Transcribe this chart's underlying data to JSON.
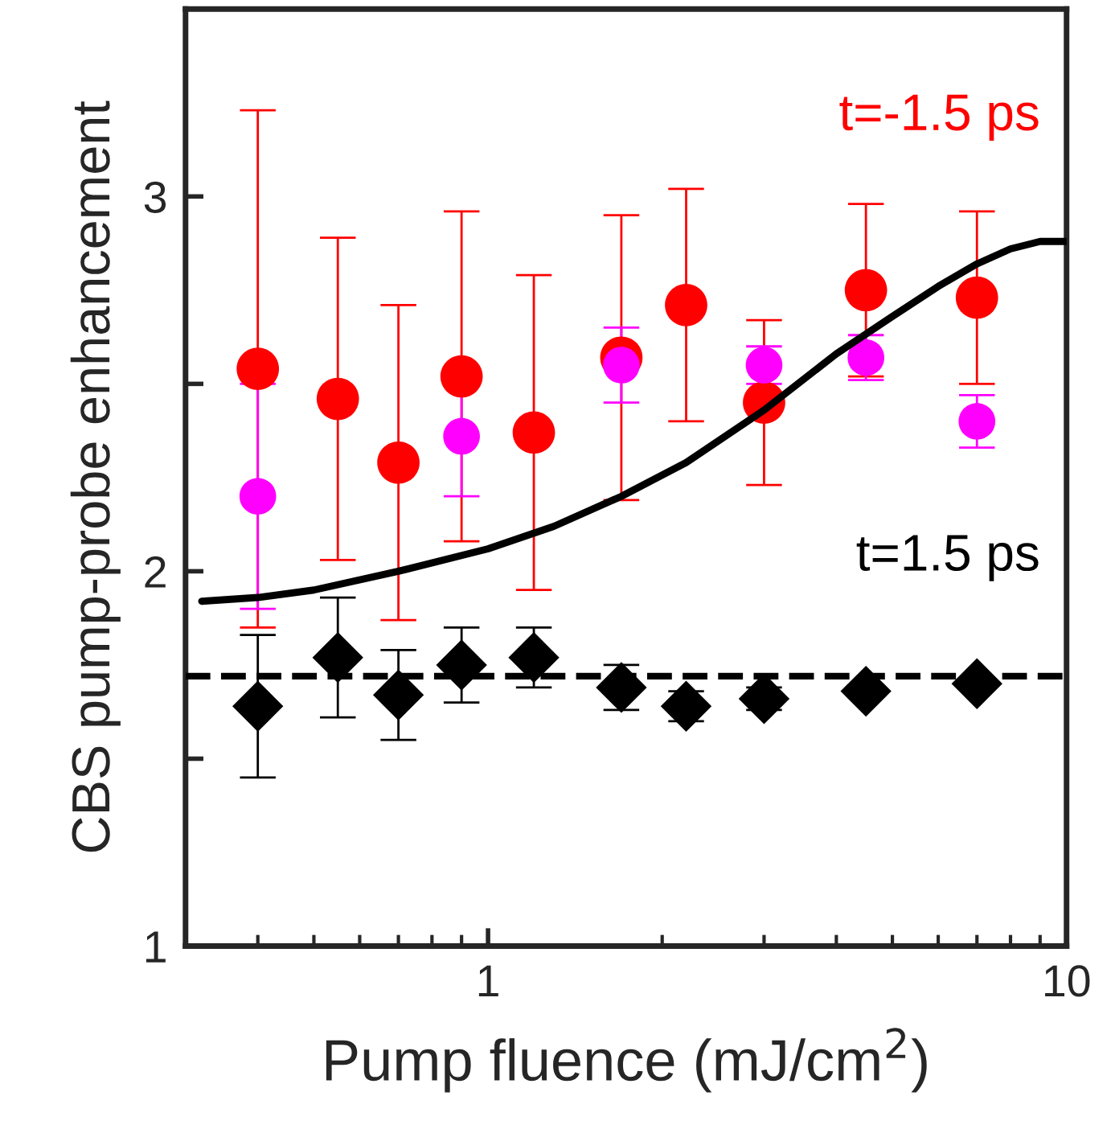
{
  "chart_data": {
    "type": "scatter",
    "xlabel": "Pump fluence (mJ/cm$^{2}$)",
    "ylabel": "CBS pump-probe enhancement",
    "x": [
      0.4,
      0.55,
      0.7,
      0.9,
      1.2,
      1.7,
      2.2,
      3.0,
      4.5,
      7.0
    ],
    "log": "x",
    "xlim": [
      0.3,
      10
    ],
    "xticks": [
      1,
      10
    ],
    "ylim": [
      1,
      3.5
    ],
    "yticks": [
      1,
      {
        "value": 1.5,
        "label": null
      },
      2,
      {
        "value": 2.5,
        "label": null
      },
      3
    ],
    "grid": false,
    "legend": false,
    "series": [
      {
        "name": "t=-1.5 ps",
        "color": "#ff0000",
        "marker": "circle",
        "values": [
          2.54,
          2.46,
          2.29,
          2.52,
          2.37,
          2.57,
          2.71,
          2.45,
          2.75,
          2.73
        ],
        "errors": [
          0.69,
          0.43,
          0.42,
          0.44,
          0.42,
          0.38,
          0.31,
          0.22,
          0.23,
          0.23
        ]
      },
      {
        "color": "#ff00ff",
        "marker": "circle",
        "values": [
          2.2,
          null,
          null,
          2.36,
          null,
          2.55,
          null,
          2.55,
          2.57,
          2.4
        ],
        "errors": [
          0.3,
          null,
          null,
          0.16,
          null,
          0.1,
          null,
          0.05,
          0.06,
          0.07
        ]
      },
      {
        "name": "t=1.5 ps",
        "color": "#000000",
        "marker": "diamond",
        "values": [
          1.64,
          1.77,
          1.67,
          1.75,
          1.77,
          1.69,
          1.64,
          1.66,
          1.68,
          1.7
        ],
        "errors": [
          0.19,
          0.16,
          0.12,
          0.1,
          0.08,
          0.06,
          0.04,
          0.03,
          null,
          null
        ]
      },
      {
        "type": "line",
        "color": "#000000",
        "line_style": "solid",
        "x": [
          0.32,
          0.4,
          0.5,
          0.7,
          1.0,
          1.3,
          1.7,
          2.2,
          3.0,
          4.0,
          5.0,
          6.0,
          7.0,
          8.0,
          9.0,
          10
        ],
        "values": [
          1.92,
          1.93,
          1.95,
          2.0,
          2.06,
          2.12,
          2.2,
          2.29,
          2.43,
          2.58,
          2.68,
          2.76,
          2.82,
          2.86,
          2.88,
          2.88
        ]
      }
    ],
    "ref_lines": [
      {
        "axis": "y",
        "value": 1.72,
        "color": "#000000",
        "line_style": "dashed"
      }
    ]
  }
}
